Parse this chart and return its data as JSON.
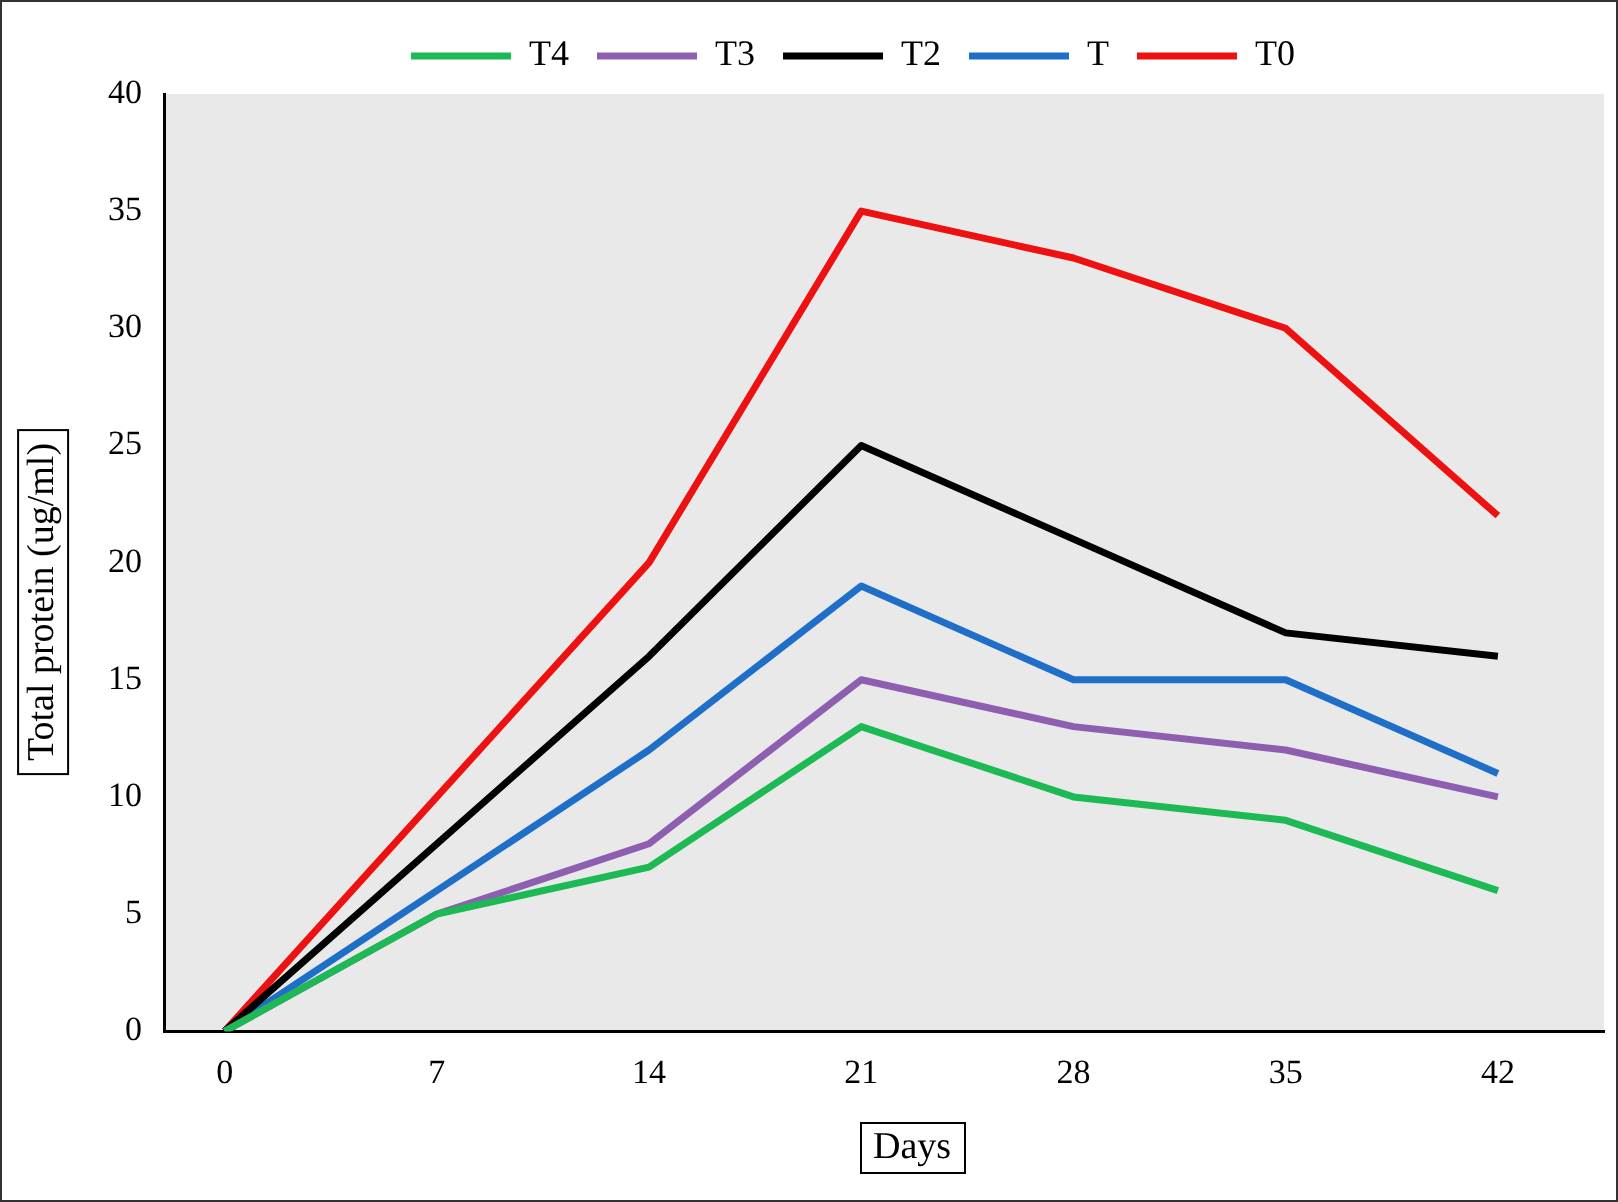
{
  "chart_data": {
    "type": "line",
    "xlabel": "Days",
    "ylabel": "Total protein (ug/ml)",
    "x": [
      0,
      7,
      14,
      21,
      28,
      35,
      42
    ],
    "series": [
      {
        "name": "T4",
        "color": "#1db954",
        "values": [
          0,
          5,
          7,
          13,
          10,
          9,
          6
        ]
      },
      {
        "name": "T3",
        "color": "#8e5fb0",
        "values": [
          0,
          5,
          8,
          15,
          13,
          12,
          10
        ]
      },
      {
        "name": "T2",
        "color": "#000000",
        "values": [
          0,
          8,
          16,
          25,
          21,
          17,
          16
        ]
      },
      {
        "name": "T",
        "color": "#1f6fc8",
        "values": [
          0,
          6,
          12,
          19,
          15,
          15,
          11
        ]
      },
      {
        "name": "T0",
        "color": "#ee1111",
        "values": [
          0,
          10,
          20,
          35,
          33,
          30,
          22
        ]
      }
    ],
    "xlim": [
      -2,
      45.5
    ],
    "xticks": [
      0,
      7,
      14,
      21,
      28,
      35,
      42
    ],
    "ylim": [
      0,
      40
    ],
    "yticks": [
      0,
      5,
      10,
      15,
      20,
      25,
      30,
      35,
      40
    ],
    "grid": false,
    "legend": "top",
    "marker": "none",
    "line_style": "solid"
  }
}
